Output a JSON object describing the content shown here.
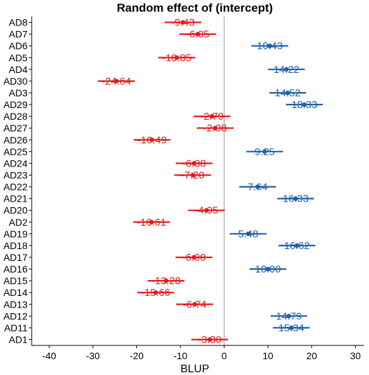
{
  "chart_data": {
    "type": "scatter",
    "title": "Random effect of (intercept)",
    "xlabel": "BLUP",
    "ylabel": "",
    "xlim": [
      -44,
      32
    ],
    "x_ticks": [
      -40,
      -30,
      -20,
      -10,
      0,
      10,
      20,
      30
    ],
    "x_tick_labels": [
      "-40",
      "-30",
      "-20",
      "-10",
      "0",
      "10",
      "20",
      "30"
    ],
    "reference_line_x": 0,
    "grid": false,
    "legend": "none",
    "colors": {
      "negative": "#e31a1c",
      "positive": "#1f5fa8",
      "reference_line": "#999999",
      "axis": "#000000"
    },
    "categories": [
      "AD8",
      "AD7",
      "AD6",
      "AD5",
      "AD4",
      "AD30",
      "AD3",
      "AD29",
      "AD28",
      "AD27",
      "AD26",
      "AD25",
      "AD24",
      "AD23",
      "AD22",
      "AD21",
      "AD20",
      "AD2",
      "AD19",
      "AD18",
      "AD17",
      "AD16",
      "AD15",
      "AD14",
      "AD13",
      "AD12",
      "AD11",
      "AD1"
    ],
    "values": [
      -9.43,
      -6.05,
      10.43,
      -10.85,
      14.22,
      -24.64,
      14.52,
      18.33,
      -2.79,
      -2.08,
      -16.49,
      9.25,
      -6.88,
      -7.2,
      7.64,
      16.33,
      -4.05,
      -16.61,
      5.48,
      16.62,
      -6.9,
      10.0,
      -13.28,
      -15.66,
      -6.74,
      14.79,
      15.34,
      -3.3
    ],
    "value_labels": [
      "-9.43",
      "-6.05",
      "10.43",
      "-10.85",
      "14.22",
      "-24.64",
      "14.52",
      "18.33",
      "-2.79",
      "-2.08",
      "-16.49",
      "9.25",
      "-6.88",
      "-7.20",
      "7.64",
      "16.33",
      "-4.05",
      "-16.61",
      "5.48",
      "16.62",
      "-6.90",
      "10.00",
      "-13.28",
      "-15.66",
      "-6.74",
      "14.79",
      "15.34",
      "-3.30"
    ],
    "half_width": 4.2
  }
}
